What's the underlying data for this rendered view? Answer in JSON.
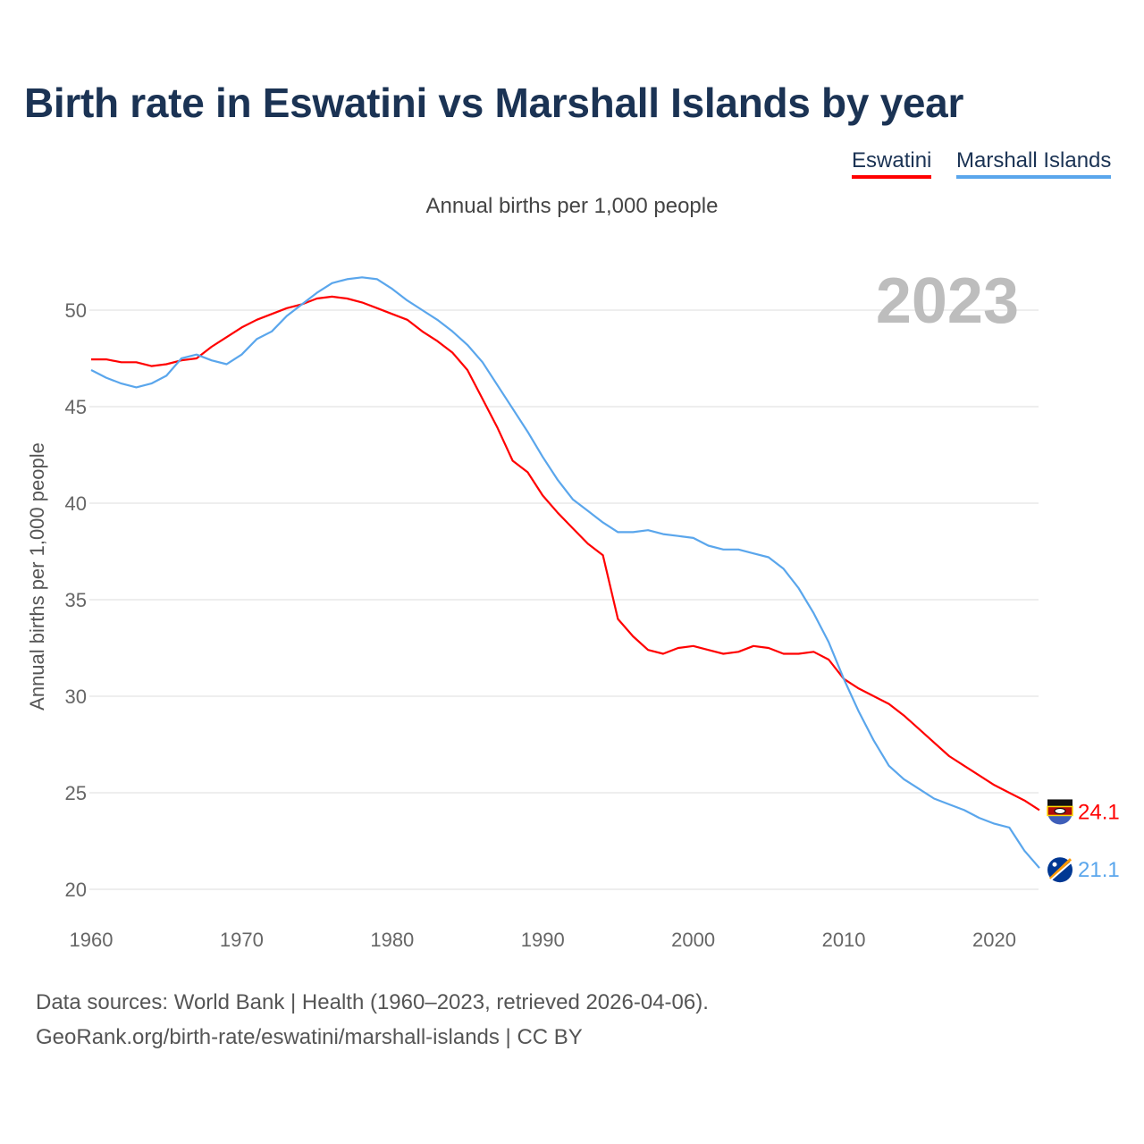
{
  "title": "Birth rate in Eswatini vs Marshall Islands by year",
  "footer": {
    "line1": "Data sources: World Bank | Health (1960–2023, retrieved 2026-04-06).",
    "line2": "GeoRank.org/birth-rate/eswatini/marshall-islands | CC BY"
  },
  "chart_data": {
    "type": "line",
    "title": "Birth rate in Eswatini vs Marshall Islands by year",
    "subtitle": "Annual births per 1,000 people",
    "ylabel": "Annual births per 1,000 people",
    "xlabel": "",
    "year_label": "2023",
    "xlim": [
      1960,
      2023
    ],
    "ylim": [
      20,
      52
    ],
    "grid": true,
    "legend_position": "top-right",
    "x_ticks": [
      1960,
      1970,
      1980,
      1990,
      2000,
      2010,
      2020
    ],
    "y_ticks": [
      20,
      25,
      30,
      35,
      40,
      45,
      50
    ],
    "x": [
      1960,
      1961,
      1962,
      1963,
      1964,
      1965,
      1966,
      1967,
      1968,
      1969,
      1970,
      1971,
      1972,
      1973,
      1974,
      1975,
      1976,
      1977,
      1978,
      1979,
      1980,
      1981,
      1982,
      1983,
      1984,
      1985,
      1986,
      1987,
      1988,
      1989,
      1990,
      1991,
      1992,
      1993,
      1994,
      1995,
      1996,
      1997,
      1998,
      1999,
      2000,
      2001,
      2002,
      2003,
      2004,
      2005,
      2006,
      2007,
      2008,
      2009,
      2010,
      2011,
      2012,
      2013,
      2014,
      2015,
      2016,
      2017,
      2018,
      2019,
      2020,
      2021,
      2022,
      2023
    ],
    "series": [
      {
        "name": "Eswatini",
        "color": "#ff0000",
        "end_label": "24.1",
        "values": [
          47.45,
          47.45,
          47.3,
          47.3,
          47.1,
          47.2,
          47.4,
          47.5,
          48.1,
          48.6,
          49.1,
          49.5,
          49.8,
          50.1,
          50.3,
          50.6,
          50.7,
          50.6,
          50.4,
          50.1,
          49.8,
          49.5,
          48.9,
          48.4,
          47.8,
          46.9,
          45.4,
          43.9,
          42.2,
          41.6,
          40.4,
          39.5,
          38.7,
          37.9,
          37.3,
          34.0,
          33.1,
          32.4,
          32.2,
          32.5,
          32.6,
          32.4,
          32.2,
          32.3,
          32.6,
          32.5,
          32.2,
          32.2,
          32.3,
          31.9,
          30.9,
          30.4,
          30.0,
          29.6,
          29.0,
          28.3,
          27.6,
          26.9,
          26.4,
          25.9,
          25.4,
          25.0,
          24.6,
          24.1
        ]
      },
      {
        "name": "Marshall Islands",
        "color": "#5aa6ec",
        "end_label": "21.1",
        "values": [
          46.9,
          46.5,
          46.2,
          46.0,
          46.2,
          46.6,
          47.5,
          47.7,
          47.4,
          47.2,
          47.7,
          48.5,
          48.9,
          49.7,
          50.3,
          50.9,
          51.4,
          51.6,
          51.7,
          51.6,
          51.1,
          50.5,
          50.0,
          49.5,
          48.9,
          48.2,
          47.3,
          46.1,
          44.9,
          43.7,
          42.4,
          41.2,
          40.2,
          39.6,
          39.0,
          38.5,
          38.5,
          38.6,
          38.4,
          38.3,
          38.2,
          37.8,
          37.6,
          37.6,
          37.4,
          37.2,
          36.6,
          35.6,
          34.3,
          32.8,
          30.9,
          29.2,
          27.7,
          26.4,
          25.7,
          25.2,
          24.7,
          24.4,
          24.1,
          23.7,
          23.4,
          23.2,
          22.0,
          21.1
        ]
      }
    ]
  }
}
